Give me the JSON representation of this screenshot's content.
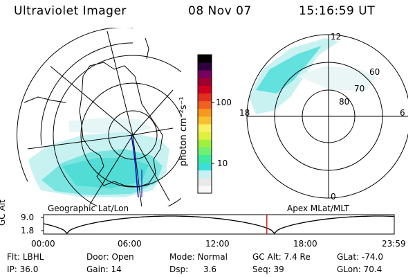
{
  "header": {
    "instrument": "Ultraviolet Imager",
    "date": "08 Nov 07",
    "time": "15:16:59 UT"
  },
  "geo_map": {
    "label": "Geographic Lat/Lon"
  },
  "colorbar": {
    "unit_label": "photon cm⁻²s⁻¹",
    "ticks": [
      "100",
      "10"
    ],
    "colors": [
      "#f8f8f8",
      "#e8e8e8",
      "#c8f0f0",
      "#38e0d8",
      "#40e8a0",
      "#70f070",
      "#a0f040",
      "#e0f040",
      "#f8f060",
      "#f8c030",
      "#f89820",
      "#f06020",
      "#e03020",
      "#d00020",
      "#a00030",
      "#780060",
      "#300040",
      "#000000"
    ]
  },
  "apex_map": {
    "label": "Apex MLat/MLT",
    "mlt_labels": {
      "top": "12",
      "left": "18",
      "right": "6",
      "bottom": "0"
    },
    "lat_labels": [
      "60",
      "70",
      "80"
    ]
  },
  "orbit": {
    "ylabel": "GC Alt",
    "yticks": [
      "9.0",
      "1.8"
    ],
    "xticks": [
      "00:00",
      "06:00",
      "12:00",
      "18:00",
      "23:59"
    ],
    "current_hour": 15.28
  },
  "info": {
    "flt_label": "Flt:",
    "flt_value": "LBHL",
    "door_label": "Door:",
    "door_value": "Open",
    "mode_label": "Mode:",
    "mode_value": "Normal",
    "gcalt_label": "GC Alt:",
    "gcalt_value": "7.4 Re",
    "glat_label": "GLat:",
    "glat_value": "-74.0",
    "ip_label": "IP:",
    "ip_value": "36.0",
    "gain_label": "Gain:",
    "gain_value": "14",
    "dsp_label": "Dsp:",
    "dsp_value": "3.6",
    "seq_label": "Seq:",
    "seq_value": "39",
    "glon_label": "GLon:",
    "glon_value": "70.4"
  },
  "colors": {
    "aurora": "#48dcd8",
    "aurora_light": "#b8eeee",
    "track": "#0000cc",
    "marker": "#d00000"
  }
}
